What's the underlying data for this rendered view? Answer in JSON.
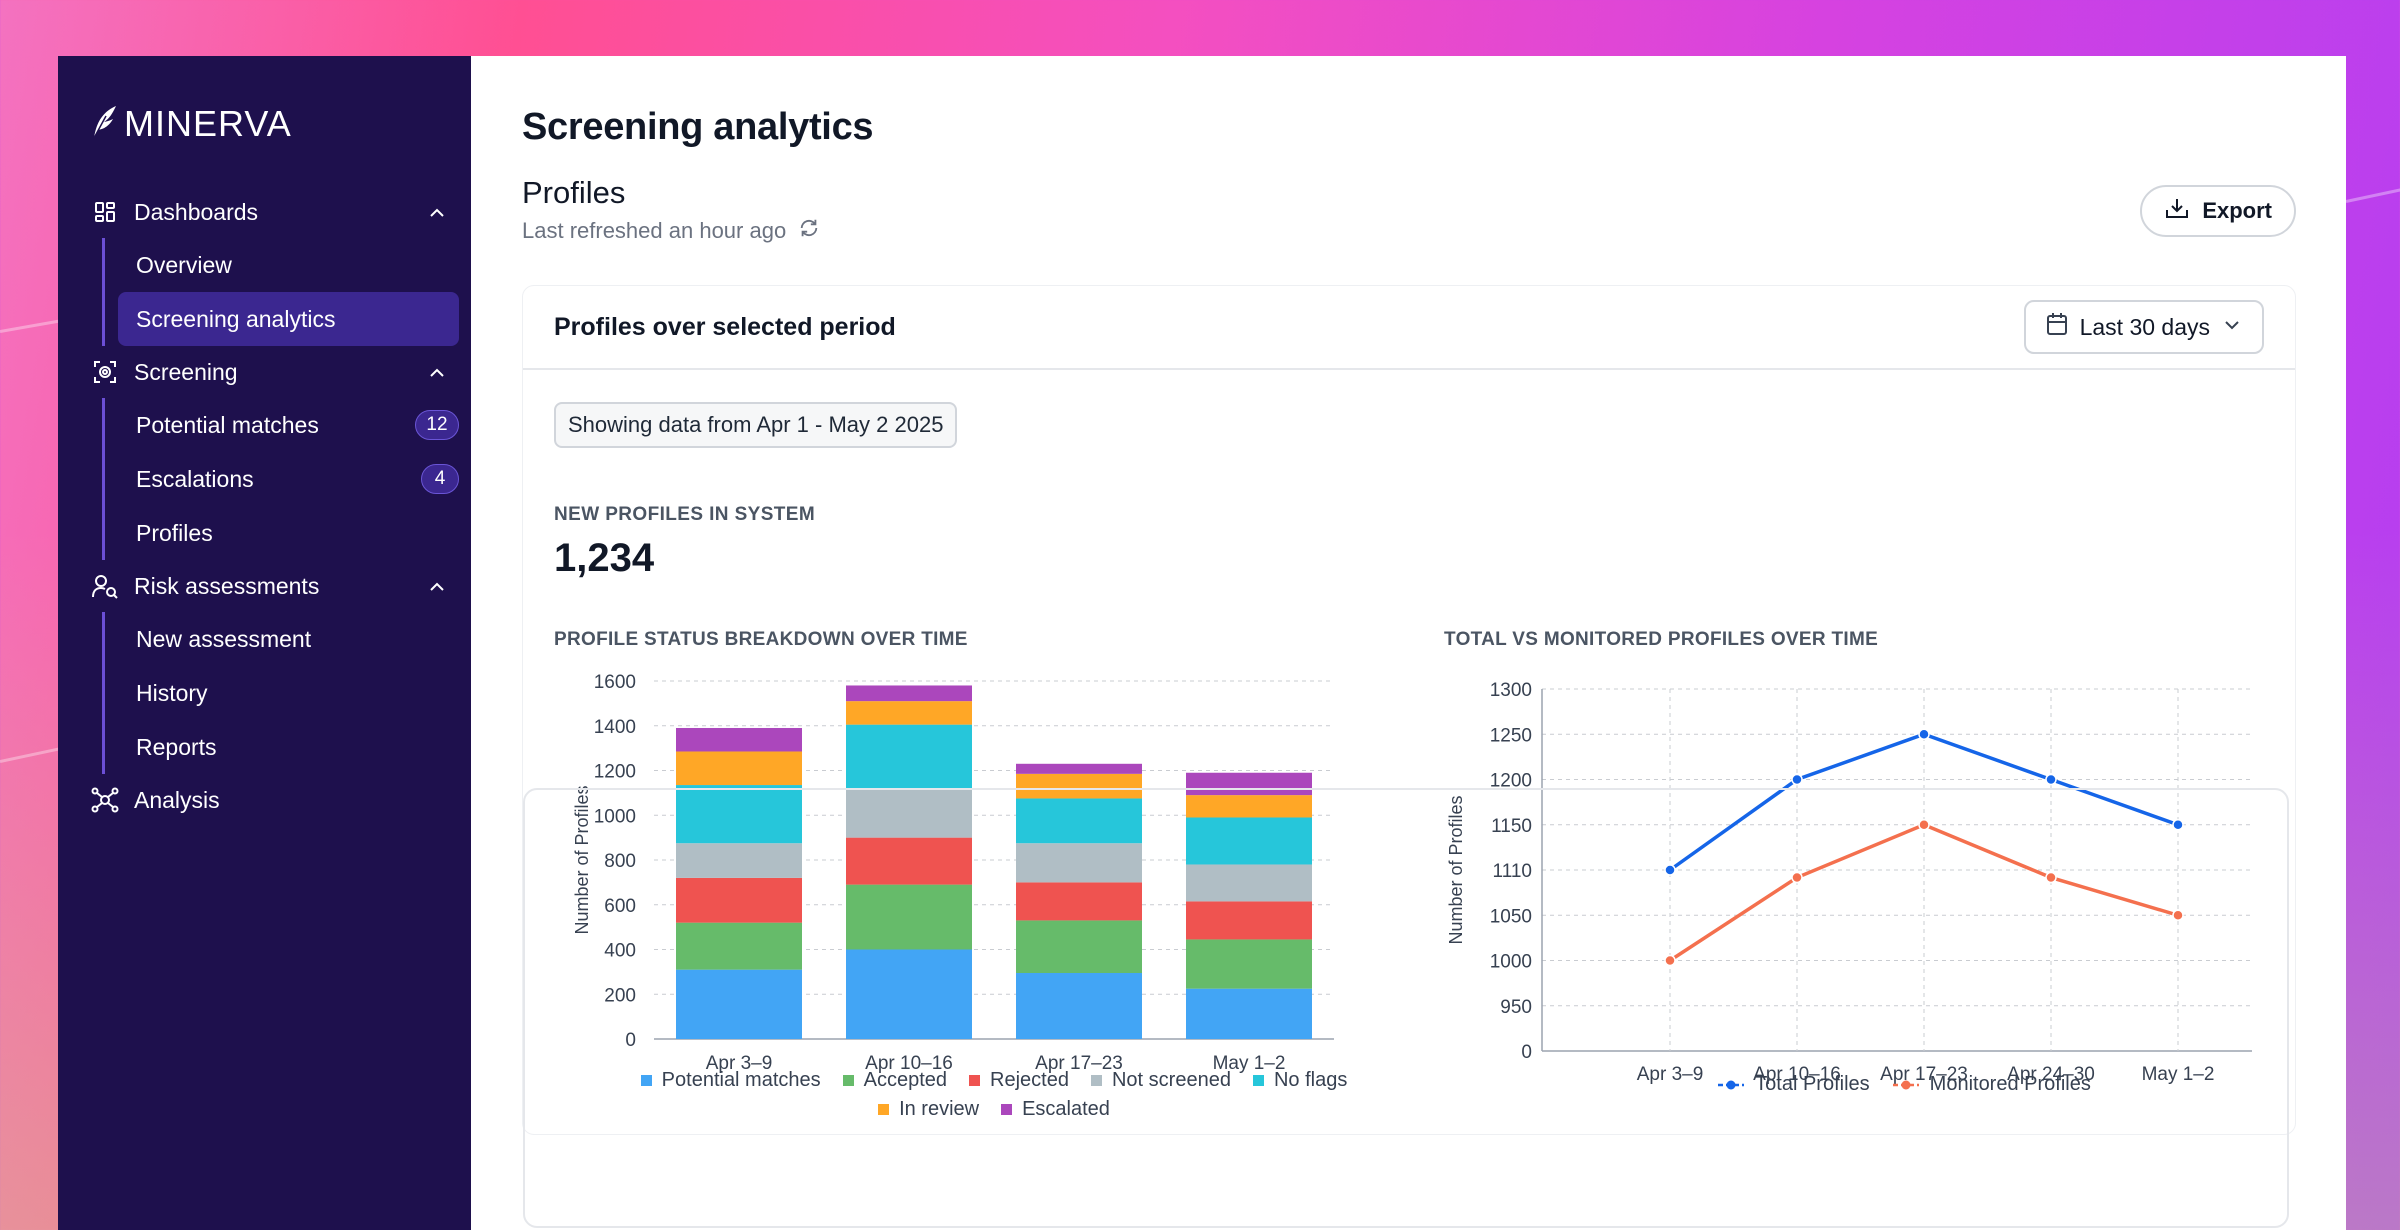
{
  "brand": {
    "name": "MINERVA"
  },
  "sidebar": {
    "sections": [
      {
        "label": "Dashboards",
        "icon": "dashboard-icon",
        "items": [
          {
            "label": "Overview",
            "active": false
          },
          {
            "label": "Screening analytics",
            "active": true
          }
        ]
      },
      {
        "label": "Screening",
        "icon": "screening-icon",
        "items": [
          {
            "label": "Potential matches",
            "badge": "12"
          },
          {
            "label": "Escalations",
            "badge": "4"
          },
          {
            "label": "Profiles"
          }
        ]
      },
      {
        "label": "Risk assessments",
        "icon": "user-search-icon",
        "items": [
          {
            "label": "New assessment"
          },
          {
            "label": "History"
          },
          {
            "label": "Reports"
          }
        ]
      },
      {
        "label": "Analysis",
        "icon": "network-icon",
        "items": []
      }
    ]
  },
  "main": {
    "title": "Screening analytics",
    "section_title": "Profiles",
    "refreshed": "Last refreshed an hour ago",
    "export_label": "Export",
    "card": {
      "title": "Profiles over selected period",
      "date_range_label": "Last 30 days",
      "range_chip": "Showing data from Apr 1 - May 2 2025",
      "metric_label": "NEW PROFILES IN SYSTEM",
      "metric_value": "1,234"
    }
  },
  "colors": {
    "sidebar_bg": "#1e104d",
    "active_item": "#3b2790",
    "accent": "#6c4fd6"
  },
  "chart_data": [
    {
      "type": "bar",
      "stacked": true,
      "title": "PROFILE STATUS BREAKDOWN OVER TIME",
      "xlabel": "",
      "ylabel": "Number of Profiles",
      "ylim": [
        0,
        1600
      ],
      "yticks": [
        0,
        200,
        400,
        600,
        800,
        1000,
        1200,
        1400,
        1600
      ],
      "grid": true,
      "legend_position": "bottom",
      "categories": [
        "Apr 3–9",
        "Apr 10–16",
        "Apr 17–23",
        "May 1–2"
      ],
      "series": [
        {
          "name": "Potential matches",
          "color": "#42a5f5",
          "values": [
            310,
            400,
            295,
            225
          ]
        },
        {
          "name": "Accepted",
          "color": "#66bb6a",
          "values": [
            210,
            290,
            235,
            220
          ]
        },
        {
          "name": "Rejected",
          "color": "#ef5350",
          "values": [
            200,
            210,
            170,
            170
          ]
        },
        {
          "name": "Not screened",
          "color": "#b0bec5",
          "values": [
            155,
            215,
            175,
            165
          ]
        },
        {
          "name": "No flags",
          "color": "#26c6da",
          "values": [
            260,
            290,
            200,
            210
          ]
        },
        {
          "name": "In review",
          "color": "#ffa726",
          "values": [
            150,
            105,
            110,
            100
          ]
        },
        {
          "name": "Escalated",
          "color": "#ab47bc",
          "values": [
            105,
            70,
            45,
            100
          ]
        }
      ]
    },
    {
      "type": "line",
      "title": "TOTAL VS MONITORED PROFILES OVER TIME",
      "xlabel": "",
      "ylabel": "Number of Profiles",
      "ytick_labels": [
        "0",
        "950",
        "1000",
        "1050",
        "1110",
        "1150",
        "1200",
        "1250",
        "1300"
      ],
      "grid": true,
      "legend_position": "bottom",
      "x": [
        "Apr 3–9",
        "Apr 10–16",
        "Apr 17–23",
        "Apr 24–30",
        "May 1–2"
      ],
      "series": [
        {
          "name": "Total Profiles",
          "color": "#1565e8",
          "values": [
            1110,
            1200,
            1250,
            1200,
            1150
          ]
        },
        {
          "name": "Monitored Profiles",
          "color": "#f4704e",
          "values": [
            1000,
            1100,
            1150,
            1100,
            1050
          ]
        }
      ]
    }
  ]
}
